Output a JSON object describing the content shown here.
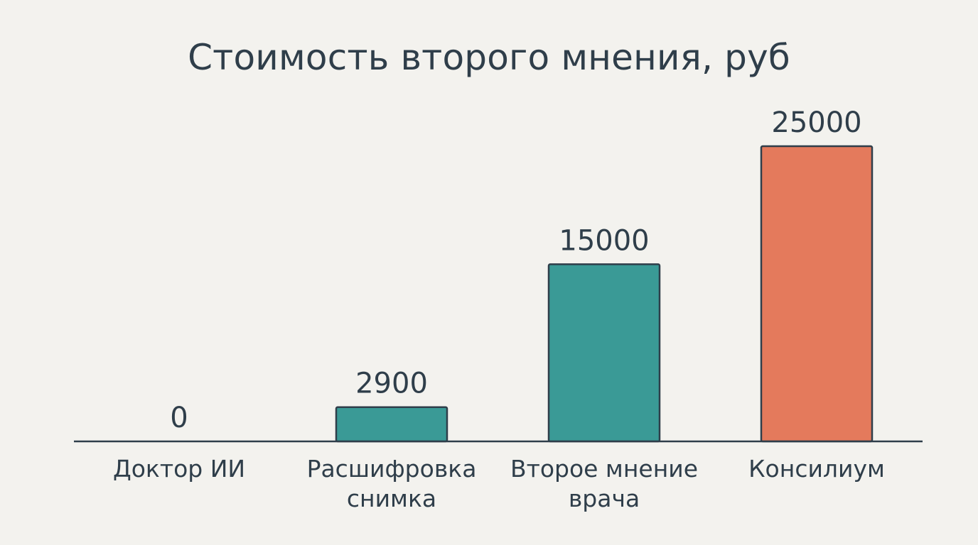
{
  "chart_data": {
    "type": "bar",
    "title": "Стоимость второго мнения, руб",
    "xlabel": "",
    "ylabel": "",
    "categories": [
      [
        "Доктор ИИ"
      ],
      [
        "Расшифровка",
        "снимка"
      ],
      [
        "Второе мнение",
        "врача"
      ],
      [
        "Консилиум"
      ]
    ],
    "values": [
      0,
      2900,
      15000,
      25000
    ],
    "value_labels": [
      "0",
      "2900",
      "15000",
      "25000"
    ],
    "ylim": [
      0,
      25000
    ],
    "grid": false,
    "legend": "none",
    "colors": [
      "#3a9a96",
      "#3a9a96",
      "#3a9a96",
      "#e47a5c"
    ],
    "outline_color": "#2f3e4a",
    "axis_color": "#2f3e4a"
  }
}
